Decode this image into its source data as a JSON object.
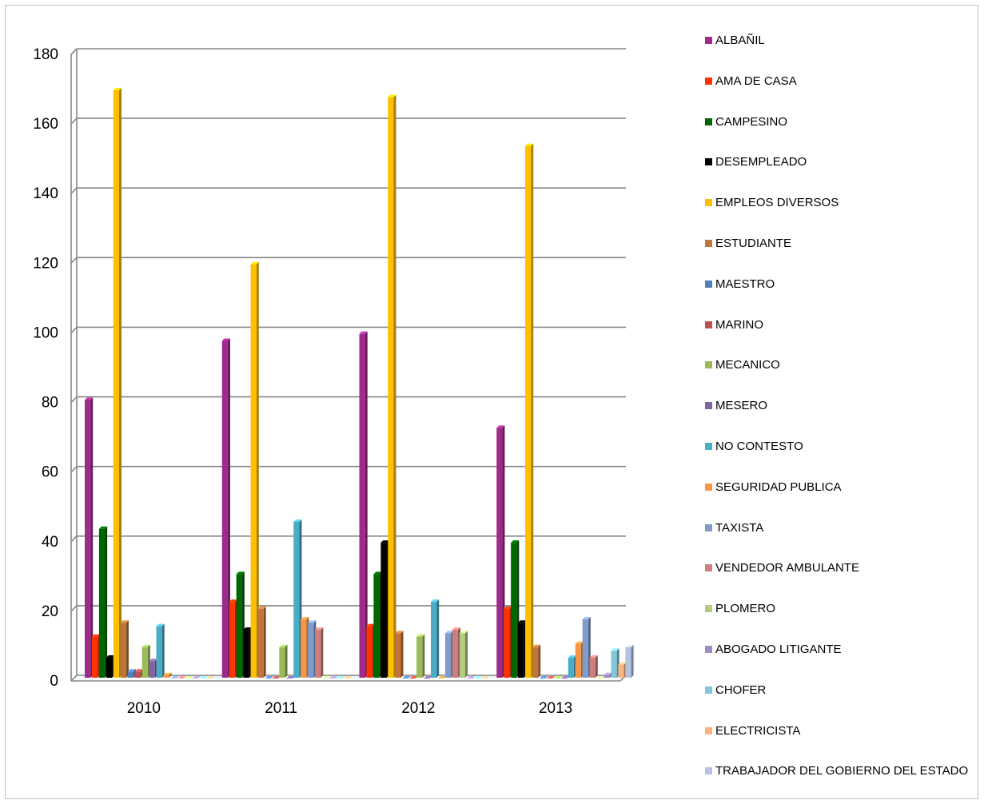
{
  "chart_data": {
    "type": "bar",
    "title": "",
    "xlabel": "",
    "ylabel": "",
    "ylim": [
      0,
      180
    ],
    "yticks": [
      "0",
      "20",
      "40",
      "60",
      "80",
      "100",
      "120",
      "140",
      "160",
      "180"
    ],
    "categories": [
      "2010",
      "2011",
      "2012",
      "2013"
    ],
    "grid": true,
    "legend_position": "right",
    "series": [
      {
        "name": "ALBAÑIL",
        "color": "#9e2a8c",
        "values": [
          80,
          97,
          99,
          72
        ]
      },
      {
        "name": "AMA DE CASA",
        "color": "#ff3300",
        "values": [
          12,
          22,
          15,
          20
        ]
      },
      {
        "name": "CAMPESINO",
        "color": "#006600",
        "values": [
          43,
          30,
          30,
          39
        ]
      },
      {
        "name": "DESEMPLEADO",
        "color": "#000000",
        "values": [
          6,
          14,
          39,
          16
        ]
      },
      {
        "name": "EMPLEOS DIVERSOS",
        "color": "#ffc000",
        "values": [
          169,
          119,
          167,
          153
        ]
      },
      {
        "name": "ESTUDIANTE",
        "color": "#c0763a",
        "values": [
          16,
          20,
          13,
          9
        ]
      },
      {
        "name": "MAESTRO",
        "color": "#4f81bd",
        "values": [
          2,
          0,
          0,
          0
        ]
      },
      {
        "name": "MARINO",
        "color": "#c0504d",
        "values": [
          2,
          0,
          0,
          0
        ]
      },
      {
        "name": "MECANICO",
        "color": "#9bbb59",
        "values": [
          9,
          9,
          12,
          0
        ]
      },
      {
        "name": "MESERO",
        "color": "#8064a2",
        "values": [
          5,
          0,
          0,
          0
        ]
      },
      {
        "name": "NO CONTESTO",
        "color": "#4bacc6",
        "values": [
          15,
          45,
          22,
          6
        ]
      },
      {
        "name": "SEGURIDAD PUBLICA",
        "color": "#f79646",
        "values": [
          1,
          17,
          0,
          10
        ]
      },
      {
        "name": "TAXISTA",
        "color": "#7f9ccb",
        "values": [
          0,
          16,
          13,
          17
        ]
      },
      {
        "name": "VENDEDOR AMBULANTE",
        "color": "#cd7f7d",
        "values": [
          0,
          14,
          14,
          6
        ]
      },
      {
        "name": "PLOMERO",
        "color": "#b3cc82",
        "values": [
          0,
          0,
          13,
          0
        ]
      },
      {
        "name": "ABOGADO LITIGANTE",
        "color": "#a08cbf",
        "values": [
          0,
          0,
          0,
          1
        ]
      },
      {
        "name": "CHOFER",
        "color": "#7fc7d9",
        "values": [
          0,
          0,
          0,
          8
        ]
      },
      {
        "name": "ELECTRICISTA",
        "color": "#fab27f",
        "values": [
          0,
          0,
          0,
          4
        ]
      },
      {
        "name": "TRABAJADOR DEL GOBIERNO DEL ESTADO",
        "color": "#b3c3e1",
        "values": [
          0,
          0,
          0,
          9
        ]
      }
    ]
  }
}
